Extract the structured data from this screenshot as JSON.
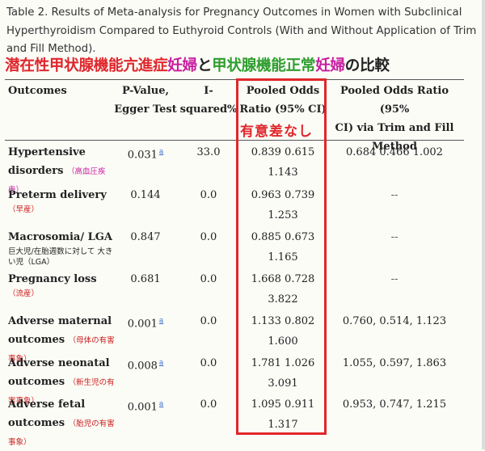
{
  "caption": "Table 2. Results of Meta-analysis for Pregnancy Outcomes in Women with Subclinical Hyperthyroidism Compared to Euthyroid Controls (With and Without Application of Trim and Fill Method).",
  "jp_title": {
    "p1": "潜在性甲状腺機能亢進症",
    "p2": "妊婦",
    "p3": "と",
    "p4": "甲状腺機能正常",
    "p5": "妊婦",
    "p6": "の比較",
    "colors": {
      "p1": "#e0262c",
      "p2": "#c81ea0",
      "p3": "#222222",
      "p4": "#2f9e2f",
      "p5": "#c81ea0",
      "p6": "#222222"
    }
  },
  "headers": {
    "outcomes": "Outcomes",
    "pvalue_1": "P-Value,",
    "pvalue_2": "Egger Test",
    "isq_1": "I-",
    "isq_2": "squared%",
    "pooled_1": "Pooled Odds",
    "pooled_2": "Ratio (95% CI)",
    "trim_1": "Pooled Odds Ratio (95%",
    "trim_2": "CI) via Trim and Fill",
    "trim_3": "Method"
  },
  "annotation_no_difference": "有意差なし",
  "superscript_mark": "a",
  "rows": [
    {
      "outcome": [
        "Hypertensive",
        "disorders"
      ],
      "note": "（高血圧疾患）",
      "pvalue": "0.031",
      "sup": true,
      "isq": "33.0",
      "pooled": [
        "0.839 0.615",
        "1.143"
      ],
      "trim": "0.684 0.466 1.002"
    },
    {
      "outcome": [
        "Preterm delivery"
      ],
      "note": "（早産）",
      "pvalue": "0.144",
      "sup": false,
      "isq": "0.0",
      "pooled": [
        "0.963 0.739",
        "1.253"
      ],
      "trim": "--"
    },
    {
      "outcome": [
        "Macrosomia/ LGA"
      ],
      "note": "巨大児/在胎週数に対して 大きい児（LGA）",
      "pvalue": "0.847",
      "sup": false,
      "isq": "0.0",
      "pooled": [
        "0.885 0.673",
        "1.165"
      ],
      "trim": "--"
    },
    {
      "outcome": [
        "Pregnancy loss"
      ],
      "note": "（流産）",
      "pvalue": "0.681",
      "sup": false,
      "isq": "0.0",
      "pooled": [
        "1.668 0.728",
        "3.822"
      ],
      "trim": "--"
    },
    {
      "outcome": [
        "Adverse maternal",
        "outcomes"
      ],
      "note": "（母体の有害事象）",
      "pvalue": "0.001",
      "sup": true,
      "isq": "0.0",
      "pooled": [
        "1.133 0.802",
        "1.600"
      ],
      "trim": "0.760, 0.514, 1.123"
    },
    {
      "outcome": [
        "Adverse neonatal",
        "outcomes"
      ],
      "note": "（新生児の有害事象）",
      "pvalue": "0.008",
      "sup": true,
      "isq": "0.0",
      "pooled": [
        "1.781 1.026",
        "3.091"
      ],
      "trim": "1.055, 0.597, 1.863"
    },
    {
      "outcome": [
        "Adverse fetal",
        "outcomes"
      ],
      "note": "（胎児の有害事象）",
      "pvalue": "0.001",
      "sup": true,
      "isq": "0.0",
      "pooled": [
        "1.095 0.911",
        "1.317"
      ],
      "trim": "0.953, 0.747, 1.215"
    }
  ]
}
